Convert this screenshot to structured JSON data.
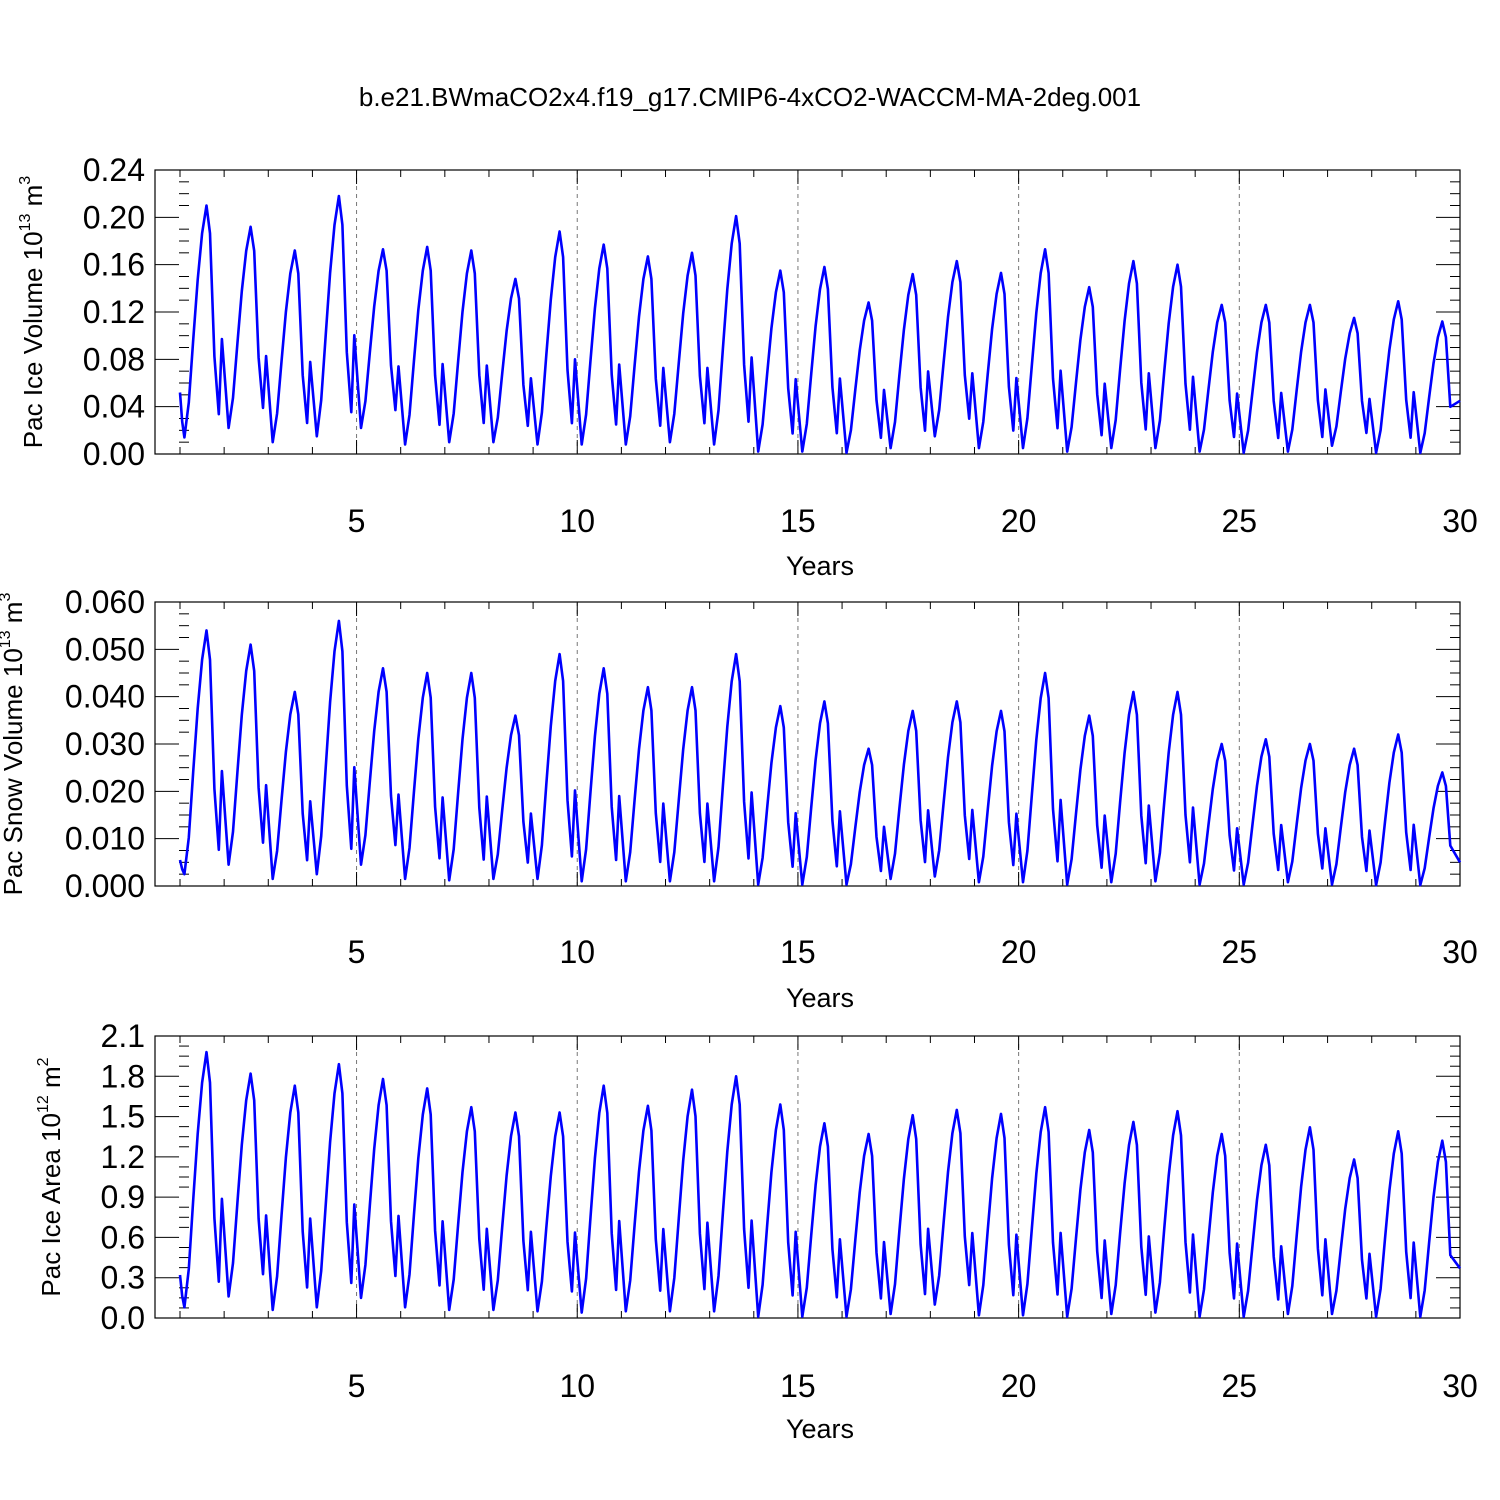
{
  "chart_data": [
    {
      "type": "line",
      "title": "b.e21.BWmaCO2x4.f19_g17.CMIP6-4xCO2-WACCM-MA-2deg.001",
      "ylabel": {
        "main": "Pac Ice Volume 10",
        "exp": "13",
        "unit": " m",
        "unit_exp": "3"
      },
      "xlabel": "Years",
      "xlim": [
        1,
        30
      ],
      "ylim": [
        0,
        0.24
      ],
      "yticks": [
        "0.00",
        "0.04",
        "0.08",
        "0.12",
        "0.16",
        "0.20",
        "0.24"
      ],
      "ytick_values": [
        0,
        0.04,
        0.08,
        0.12,
        0.16,
        0.2,
        0.24
      ],
      "xticks": [
        "5",
        "10",
        "15",
        "20",
        "25",
        "30"
      ],
      "xtick_values": [
        5,
        10,
        15,
        20,
        25,
        30
      ],
      "reference_lines_x": [
        5,
        10,
        15,
        20,
        25
      ],
      "series": [
        {
          "color": "#0000ff",
          "cycle": {
            "start_value": 0.052,
            "minima": [
              0.014,
              0.022,
              0.01,
              0.015,
              0.022,
              0.008,
              0.01,
              0.01,
              0.008,
              0.008,
              0.008,
              0.01,
              0.008,
              0.002,
              0.002,
              0.001,
              0.005,
              0.015,
              0.005,
              0.005,
              0.002,
              0.005,
              0.005,
              0.002,
              0.001,
              0.002,
              0.007,
              0.001,
              0.001
            ],
            "maxima": [
              0.21,
              0.192,
              0.172,
              0.218,
              0.173,
              0.175,
              0.172,
              0.148,
              0.188,
              0.177,
              0.167,
              0.17,
              0.201,
              0.155,
              0.158,
              0.128,
              0.152,
              0.163,
              0.153,
              0.173,
              0.141,
              0.163,
              0.16,
              0.126,
              0.126,
              0.126,
              0.115,
              0.129,
              0.112
            ],
            "end_value": 0.045
          }
        }
      ]
    },
    {
      "type": "line",
      "ylabel": {
        "main": "Pac Snow Volume 10",
        "exp": "13",
        "unit": " m",
        "unit_exp": "3"
      },
      "xlabel": "Years",
      "xlim": [
        1,
        30
      ],
      "ylim": [
        0,
        0.06
      ],
      "yticks": [
        "0.000",
        "0.010",
        "0.020",
        "0.030",
        "0.040",
        "0.050",
        "0.060"
      ],
      "ytick_values": [
        0,
        0.01,
        0.02,
        0.03,
        0.04,
        0.05,
        0.06
      ],
      "xticks": [
        "5",
        "10",
        "15",
        "20",
        "25",
        "30"
      ],
      "xtick_values": [
        5,
        10,
        15,
        20,
        25,
        30
      ],
      "reference_lines_x": [
        5,
        10,
        15,
        20,
        25
      ],
      "series": [
        {
          "color": "#0000ff",
          "cycle": {
            "start_value": 0.0055,
            "minima": [
              0.0025,
              0.0045,
              0.0015,
              0.0025,
              0.0045,
              0.0015,
              0.0012,
              0.0015,
              0.0015,
              0.001,
              0.001,
              0.001,
              0.001,
              0.0003,
              0.0003,
              0.0003,
              0.0015,
              0.002,
              0.0008,
              0.0008,
              0.0003,
              0.0008,
              0.001,
              0.0003,
              0.0003,
              0.0008,
              0.0003,
              0.0002,
              0.0002
            ],
            "maxima": [
              0.054,
              0.051,
              0.041,
              0.056,
              0.046,
              0.045,
              0.045,
              0.036,
              0.049,
              0.046,
              0.042,
              0.042,
              0.049,
              0.038,
              0.039,
              0.029,
              0.037,
              0.039,
              0.037,
              0.045,
              0.036,
              0.041,
              0.041,
              0.03,
              0.031,
              0.03,
              0.029,
              0.032,
              0.024
            ],
            "end_value": 0.005
          }
        }
      ]
    },
    {
      "type": "line",
      "ylabel": {
        "main": "Pac Ice Area 10",
        "exp": "12",
        "unit": " m",
        "unit_exp": "2"
      },
      "xlabel": "Years",
      "xlim": [
        1,
        30
      ],
      "ylim": [
        0,
        2.1
      ],
      "yticks": [
        "0.0",
        "0.3",
        "0.6",
        "0.9",
        "1.2",
        "1.5",
        "1.8",
        "2.1"
      ],
      "ytick_values": [
        0,
        0.3,
        0.6,
        0.9,
        1.2,
        1.5,
        1.8,
        2.1
      ],
      "xticks": [
        "5",
        "10",
        "15",
        "20",
        "25",
        "30"
      ],
      "xtick_values": [
        5,
        10,
        15,
        20,
        25,
        30
      ],
      "reference_lines_x": [
        5,
        10,
        15,
        20,
        25
      ],
      "series": [
        {
          "color": "#0000ff",
          "cycle": {
            "start_value": 0.32,
            "minima": [
              0.08,
              0.16,
              0.06,
              0.08,
              0.15,
              0.08,
              0.06,
              0.06,
              0.05,
              0.04,
              0.05,
              0.05,
              0.05,
              0.01,
              0.01,
              0.01,
              0.03,
              0.1,
              0.02,
              0.02,
              0.01,
              0.03,
              0.04,
              0.01,
              0.01,
              0.03,
              0.03,
              0.01,
              0.01
            ],
            "maxima": [
              1.98,
              1.82,
              1.73,
              1.89,
              1.78,
              1.71,
              1.57,
              1.53,
              1.53,
              1.73,
              1.58,
              1.7,
              1.8,
              1.59,
              1.45,
              1.37,
              1.51,
              1.55,
              1.52,
              1.57,
              1.4,
              1.46,
              1.54,
              1.37,
              1.29,
              1.42,
              1.18,
              1.39,
              1.32
            ],
            "end_value": 0.37
          }
        }
      ]
    }
  ]
}
